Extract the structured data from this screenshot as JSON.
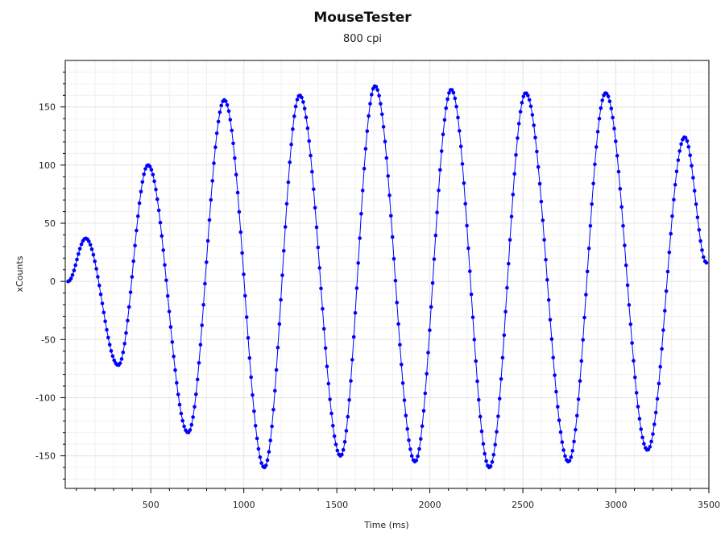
{
  "chart_data": {
    "type": "line",
    "title": "MouseTester",
    "subtitle": "800 cpi",
    "xlabel": "Time (ms)",
    "ylabel": "xCounts",
    "xlim": [
      40,
      3500
    ],
    "ylim": [
      -178,
      190
    ],
    "x_ticks": [
      500,
      1000,
      1500,
      2000,
      2500,
      3000,
      3500
    ],
    "y_ticks": [
      -150,
      -100,
      -50,
      0,
      50,
      100,
      150
    ],
    "grid": true,
    "series": [
      {
        "color": "#0000ff",
        "markers": true,
        "sample_interval_ms": 8,
        "x": [
          55,
          150,
          325,
          485,
          700,
          895,
          1110,
          1300,
          1520,
          1705,
          1920,
          2115,
          2320,
          2515,
          2745,
          2945,
          3170,
          3370,
          3487
        ],
        "y": [
          0,
          37,
          -72,
          100,
          -130,
          156,
          -160,
          160,
          -150,
          168,
          -155,
          165,
          -160,
          162,
          -155,
          162,
          -145,
          124,
          16
        ]
      }
    ]
  }
}
